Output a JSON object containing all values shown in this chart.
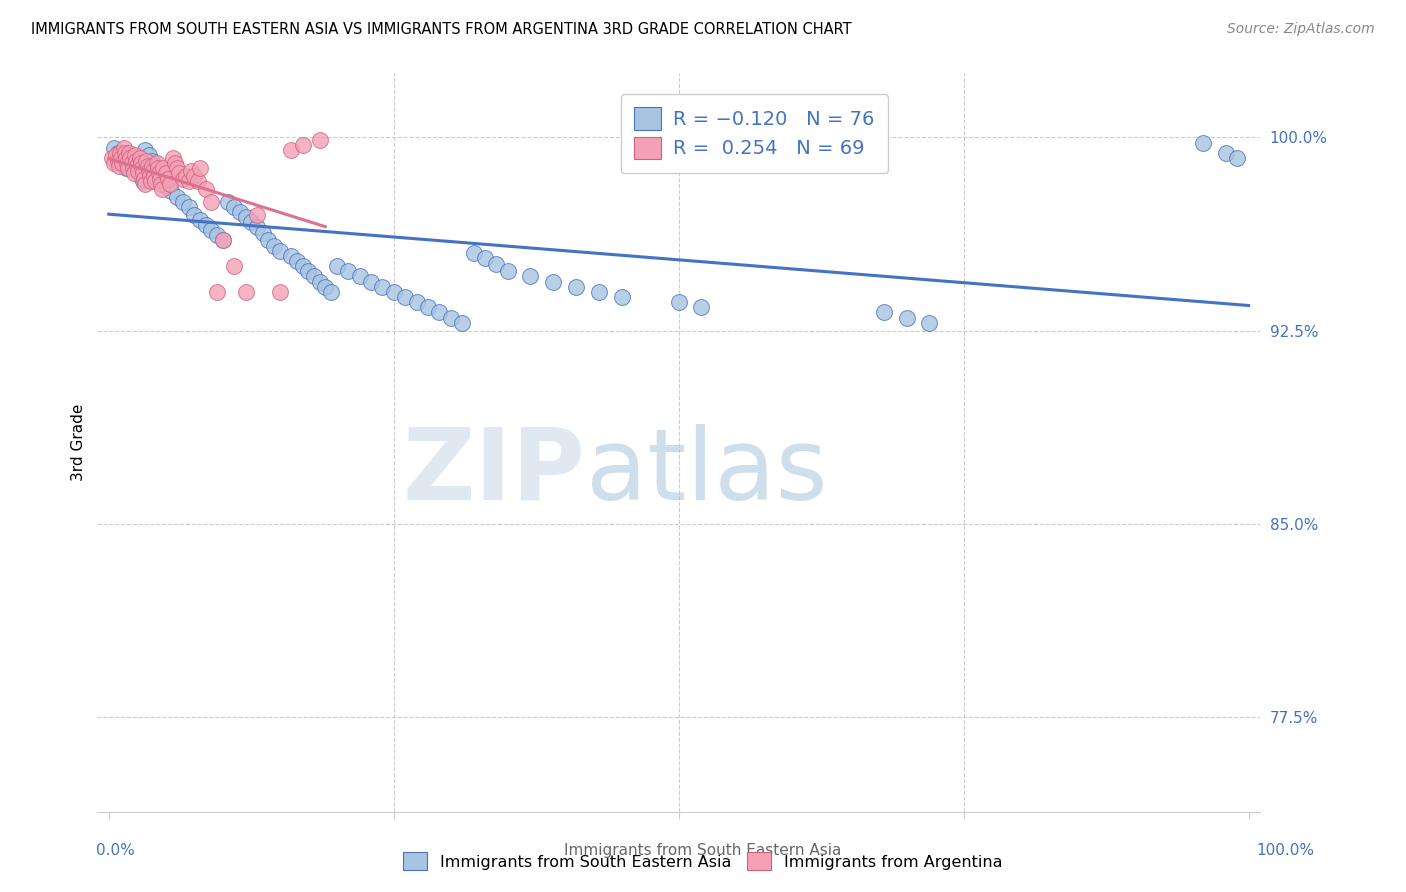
{
  "title": "IMMIGRANTS FROM SOUTH EASTERN ASIA VS IMMIGRANTS FROM ARGENTINA 3RD GRADE CORRELATION CHART",
  "source": "Source: ZipAtlas.com",
  "ylabel": "3rd Grade",
  "blue_color": "#a8c4e0",
  "blue_edge_color": "#4472c4",
  "pink_color": "#f4a0b5",
  "pink_edge_color": "#d06080",
  "blue_line_color": "#4472c4",
  "pink_line_color": "#e07090",
  "legend_text_color": "#4472c4",
  "ytick_color": "#4472c4",
  "xtick_color": "#4472c4",
  "watermark_color": "#d8eaf6",
  "grid_color": "#cccccc",
  "blue_scatter_x": [
    0.005,
    0.008,
    0.01,
    0.012,
    0.015,
    0.018,
    0.02,
    0.022,
    0.025,
    0.028,
    0.03,
    0.032,
    0.035,
    0.038,
    0.04,
    0.042,
    0.045,
    0.048,
    0.05,
    0.055,
    0.06,
    0.065,
    0.07,
    0.075,
    0.08,
    0.085,
    0.09,
    0.095,
    0.1,
    0.105,
    0.11,
    0.115,
    0.12,
    0.125,
    0.13,
    0.135,
    0.14,
    0.145,
    0.15,
    0.16,
    0.165,
    0.17,
    0.175,
    0.18,
    0.185,
    0.19,
    0.195,
    0.2,
    0.21,
    0.22,
    0.23,
    0.24,
    0.25,
    0.26,
    0.27,
    0.28,
    0.29,
    0.3,
    0.31,
    0.32,
    0.33,
    0.34,
    0.35,
    0.37,
    0.39,
    0.41,
    0.43,
    0.45,
    0.5,
    0.52,
    0.68,
    0.7,
    0.72,
    0.96,
    0.98,
    0.99
  ],
  "blue_scatter_y": [
    0.996,
    0.994,
    0.992,
    0.99,
    0.988,
    0.993,
    0.991,
    0.989,
    0.987,
    0.985,
    0.983,
    0.995,
    0.993,
    0.991,
    0.989,
    0.987,
    0.985,
    0.983,
    0.981,
    0.979,
    0.977,
    0.975,
    0.973,
    0.97,
    0.968,
    0.966,
    0.964,
    0.962,
    0.96,
    0.975,
    0.973,
    0.971,
    0.969,
    0.967,
    0.965,
    0.963,
    0.96,
    0.958,
    0.956,
    0.954,
    0.952,
    0.95,
    0.948,
    0.946,
    0.944,
    0.942,
    0.94,
    0.95,
    0.948,
    0.946,
    0.944,
    0.942,
    0.94,
    0.938,
    0.936,
    0.934,
    0.932,
    0.93,
    0.928,
    0.955,
    0.953,
    0.951,
    0.948,
    0.946,
    0.944,
    0.942,
    0.94,
    0.938,
    0.936,
    0.934,
    0.932,
    0.93,
    0.928,
    0.998,
    0.994,
    0.992
  ],
  "pink_scatter_x": [
    0.003,
    0.005,
    0.006,
    0.008,
    0.009,
    0.01,
    0.011,
    0.012,
    0.013,
    0.014,
    0.015,
    0.016,
    0.017,
    0.018,
    0.019,
    0.02,
    0.021,
    0.022,
    0.023,
    0.024,
    0.025,
    0.026,
    0.027,
    0.028,
    0.029,
    0.03,
    0.031,
    0.032,
    0.033,
    0.034,
    0.035,
    0.036,
    0.037,
    0.038,
    0.039,
    0.04,
    0.041,
    0.042,
    0.043,
    0.044,
    0.045,
    0.046,
    0.047,
    0.048,
    0.05,
    0.052,
    0.054,
    0.056,
    0.058,
    0.06,
    0.062,
    0.065,
    0.068,
    0.07,
    0.072,
    0.075,
    0.078,
    0.08,
    0.085,
    0.09,
    0.095,
    0.1,
    0.11,
    0.12,
    0.13,
    0.15,
    0.16,
    0.17,
    0.185
  ],
  "pink_scatter_y": [
    0.992,
    0.99,
    0.993,
    0.991,
    0.989,
    0.994,
    0.992,
    0.99,
    0.996,
    0.994,
    0.992,
    0.99,
    0.988,
    0.994,
    0.992,
    0.99,
    0.988,
    0.986,
    0.993,
    0.991,
    0.989,
    0.987,
    0.992,
    0.99,
    0.988,
    0.986,
    0.984,
    0.982,
    0.991,
    0.989,
    0.987,
    0.985,
    0.983,
    0.989,
    0.987,
    0.985,
    0.983,
    0.99,
    0.988,
    0.986,
    0.984,
    0.982,
    0.98,
    0.988,
    0.986,
    0.984,
    0.982,
    0.992,
    0.99,
    0.988,
    0.986,
    0.984,
    0.985,
    0.983,
    0.987,
    0.985,
    0.983,
    0.988,
    0.98,
    0.975,
    0.94,
    0.96,
    0.95,
    0.94,
    0.97,
    0.94,
    0.995,
    0.997,
    0.999
  ],
  "ytick_vals": [
    0.775,
    0.85,
    0.925,
    1.0
  ],
  "ytick_labels": [
    "77.5%",
    "85.0%",
    "92.5%",
    "100.0%"
  ],
  "xlim": [
    -0.01,
    1.01
  ],
  "ylim": [
    0.738,
    1.025
  ]
}
